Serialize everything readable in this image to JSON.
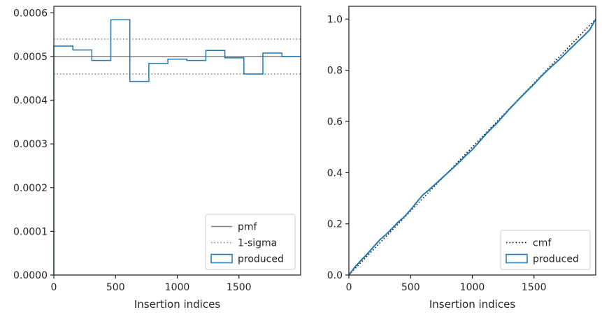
{
  "chart_data": [
    {
      "type": "step",
      "xlabel": "Insertion indices",
      "ylabel": "",
      "xlim": [
        0,
        2000
      ],
      "ylim": [
        0,
        0.000615
      ],
      "xticks": [
        0,
        500,
        1000,
        1500
      ],
      "xtick_labels": [
        "0",
        "500",
        "1000",
        "1500"
      ],
      "yticks": [
        0,
        0.0001,
        0.0002,
        0.0003,
        0.0004,
        0.0005,
        0.0006
      ],
      "ytick_labels": [
        "0.0000",
        "0.0001",
        "0.0002",
        "0.0003",
        "0.0004",
        "0.0005",
        "0.0006"
      ],
      "grid": false,
      "legend_position": "lower right",
      "series": [
        {
          "name": "pmf",
          "kind": "hline",
          "y": 0.0005,
          "color": "#808080",
          "style": "solid"
        },
        {
          "name": "1-sigma",
          "kind": "hlines",
          "y": [
            0.00054,
            0.00046
          ],
          "color": "#808080",
          "style": "dotted"
        },
        {
          "name": "produced",
          "kind": "histogram",
          "color": "#1f77b4",
          "bin_edges": [
            0,
            154,
            308,
            462,
            616,
            770,
            924,
            1078,
            1232,
            1386,
            1540,
            1694,
            1848,
            2000
          ],
          "values": [
            0.000524,
            0.000515,
            0.000491,
            0.000584,
            0.000443,
            0.000484,
            0.000494,
            0.000491,
            0.000514,
            0.000497,
            0.00046,
            0.000508,
            0.0005
          ]
        }
      ]
    },
    {
      "type": "line",
      "xlabel": "Insertion indices",
      "ylabel": "",
      "xlim": [
        0,
        2000
      ],
      "ylim": [
        0,
        1.05
      ],
      "xticks": [
        0,
        500,
        1000,
        1500
      ],
      "xtick_labels": [
        "0",
        "500",
        "1000",
        "1500"
      ],
      "yticks": [
        0,
        0.2,
        0.4,
        0.6,
        0.8,
        1.0
      ],
      "ytick_labels": [
        "0.0",
        "0.2",
        "0.4",
        "0.6",
        "0.8",
        "1.0"
      ],
      "grid": false,
      "legend_position": "lower right",
      "series": [
        {
          "name": "cmf",
          "color": "#000000",
          "style": "dotted",
          "x": [
            0,
            2000
          ],
          "y": [
            0,
            1
          ]
        },
        {
          "name": "produced",
          "color": "#1f77b4",
          "style": "solid",
          "x": [
            0,
            50,
            100,
            150,
            200,
            250,
            300,
            350,
            400,
            450,
            500,
            550,
            600,
            650,
            700,
            750,
            800,
            850,
            900,
            950,
            1000,
            1050,
            1100,
            1150,
            1200,
            1250,
            1300,
            1350,
            1400,
            1450,
            1500,
            1550,
            1600,
            1650,
            1700,
            1750,
            1800,
            1850,
            1900,
            1950,
            2000
          ],
          "y": [
            0,
            0.032,
            0.058,
            0.083,
            0.11,
            0.137,
            0.158,
            0.182,
            0.207,
            0.228,
            0.255,
            0.285,
            0.313,
            0.333,
            0.355,
            0.377,
            0.399,
            0.421,
            0.444,
            0.468,
            0.49,
            0.517,
            0.545,
            0.57,
            0.594,
            0.621,
            0.648,
            0.673,
            0.698,
            0.722,
            0.746,
            0.772,
            0.796,
            0.818,
            0.84,
            0.863,
            0.887,
            0.91,
            0.933,
            0.957,
            1.0
          ]
        }
      ]
    }
  ]
}
